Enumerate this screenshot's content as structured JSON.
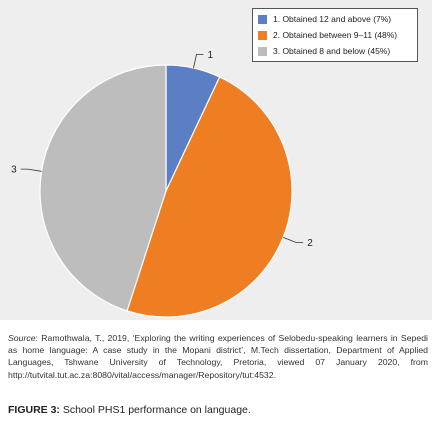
{
  "chart_data": {
    "type": "pie",
    "slices": [
      {
        "label": "1",
        "legend": "1. Obtained 12 and above (7%)",
        "value": 7,
        "color": "#5b7fc4"
      },
      {
        "label": "2",
        "legend": "2. Obtained between 9–11 (48%)",
        "value": 48,
        "color": "#ef7d22"
      },
      {
        "label": "3",
        "legend": "3. Obtained 8 and below (45%)",
        "value": 45,
        "color": "#bdbdbd"
      }
    ],
    "legend_position": "top-right",
    "start_angle": "12 o'clock",
    "direction": "clockwise"
  },
  "source": {
    "label": "Source",
    "text": ": Ramothwala, T., 2019, ‘Exploring the writing experiences of Selobedu-speaking learners in Sepedi as home language: A case study in the Mopani district’, M.Tech dissertation, Department of Applied Languages, Tshwane University of Technology, Pretoria, viewed 07 January 2020, from http://tutvital.tut.ac.za:8080/vital/access/manager/Repository/tut:4532."
  },
  "caption": {
    "label": "FIGURE 3:",
    "text": " School PHS1 performance on language."
  }
}
